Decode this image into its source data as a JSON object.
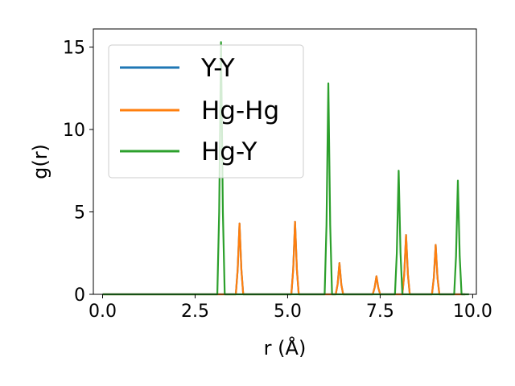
{
  "chart_data": {
    "type": "line",
    "title": "",
    "xlabel": "r (Å)",
    "ylabel": "g(r)",
    "xlim": [
      -0.25,
      10.1
    ],
    "ylim": [
      0,
      16.1
    ],
    "xticks": [
      0.0,
      2.5,
      5.0,
      7.5,
      10.0
    ],
    "xtick_labels": [
      "0.0",
      "2.5",
      "5.0",
      "7.5",
      "10.0"
    ],
    "yticks": [
      0,
      5,
      10,
      15
    ],
    "ytick_labels": [
      "0",
      "5",
      "10",
      "15"
    ],
    "grid": false,
    "legend_placement": "top-left",
    "series": [
      {
        "name": "Y-Y",
        "color": "#1f77b4",
        "x": [
          0.0,
          3.6,
          3.65,
          3.7,
          3.75,
          3.8,
          5.1,
          5.15,
          5.2,
          5.25,
          5.3,
          6.3,
          6.35,
          6.4,
          6.45,
          6.5,
          7.3,
          7.35,
          7.4,
          7.45,
          7.5,
          8.1,
          8.15,
          8.2,
          8.25,
          8.3,
          8.9,
          8.95,
          9.0,
          9.05,
          9.1,
          9.8
        ],
        "y": [
          0,
          0,
          1.5,
          4.3,
          1.5,
          0,
          0,
          1.5,
          4.4,
          1.5,
          0,
          0,
          0.6,
          1.9,
          0.6,
          0,
          0,
          0.4,
          1.1,
          0.4,
          0,
          0,
          1.2,
          3.6,
          1.2,
          0,
          0,
          1.0,
          3.0,
          1.0,
          0,
          0
        ]
      },
      {
        "name": "Hg-Hg",
        "color": "#ff7f0e",
        "x": [
          0.0,
          3.6,
          3.65,
          3.7,
          3.75,
          3.8,
          5.1,
          5.15,
          5.2,
          5.25,
          5.3,
          6.3,
          6.35,
          6.4,
          6.45,
          6.5,
          7.3,
          7.35,
          7.4,
          7.45,
          7.5,
          8.1,
          8.15,
          8.2,
          8.25,
          8.3,
          8.9,
          8.95,
          9.0,
          9.05,
          9.1,
          9.8
        ],
        "y": [
          0,
          0,
          1.5,
          4.3,
          1.5,
          0,
          0,
          1.5,
          4.4,
          1.5,
          0,
          0,
          0.6,
          1.9,
          0.6,
          0,
          0,
          0.4,
          1.1,
          0.4,
          0,
          0,
          1.2,
          3.6,
          1.2,
          0,
          0,
          1.0,
          3.0,
          1.0,
          0,
          0
        ]
      },
      {
        "name": "Hg-Y",
        "color": "#2ca02c",
        "x": [
          0.0,
          3.1,
          3.15,
          3.2,
          3.25,
          3.3,
          6.0,
          6.05,
          6.1,
          6.15,
          6.2,
          7.9,
          7.95,
          8.0,
          8.05,
          8.1,
          9.5,
          9.55,
          9.6,
          9.65,
          9.7,
          9.9
        ],
        "y": [
          0,
          0,
          5.0,
          15.3,
          5.0,
          0,
          0,
          4.2,
          12.8,
          4.2,
          0,
          0,
          2.5,
          7.5,
          2.5,
          0,
          0,
          2.3,
          6.9,
          2.3,
          0,
          0
        ]
      }
    ]
  }
}
